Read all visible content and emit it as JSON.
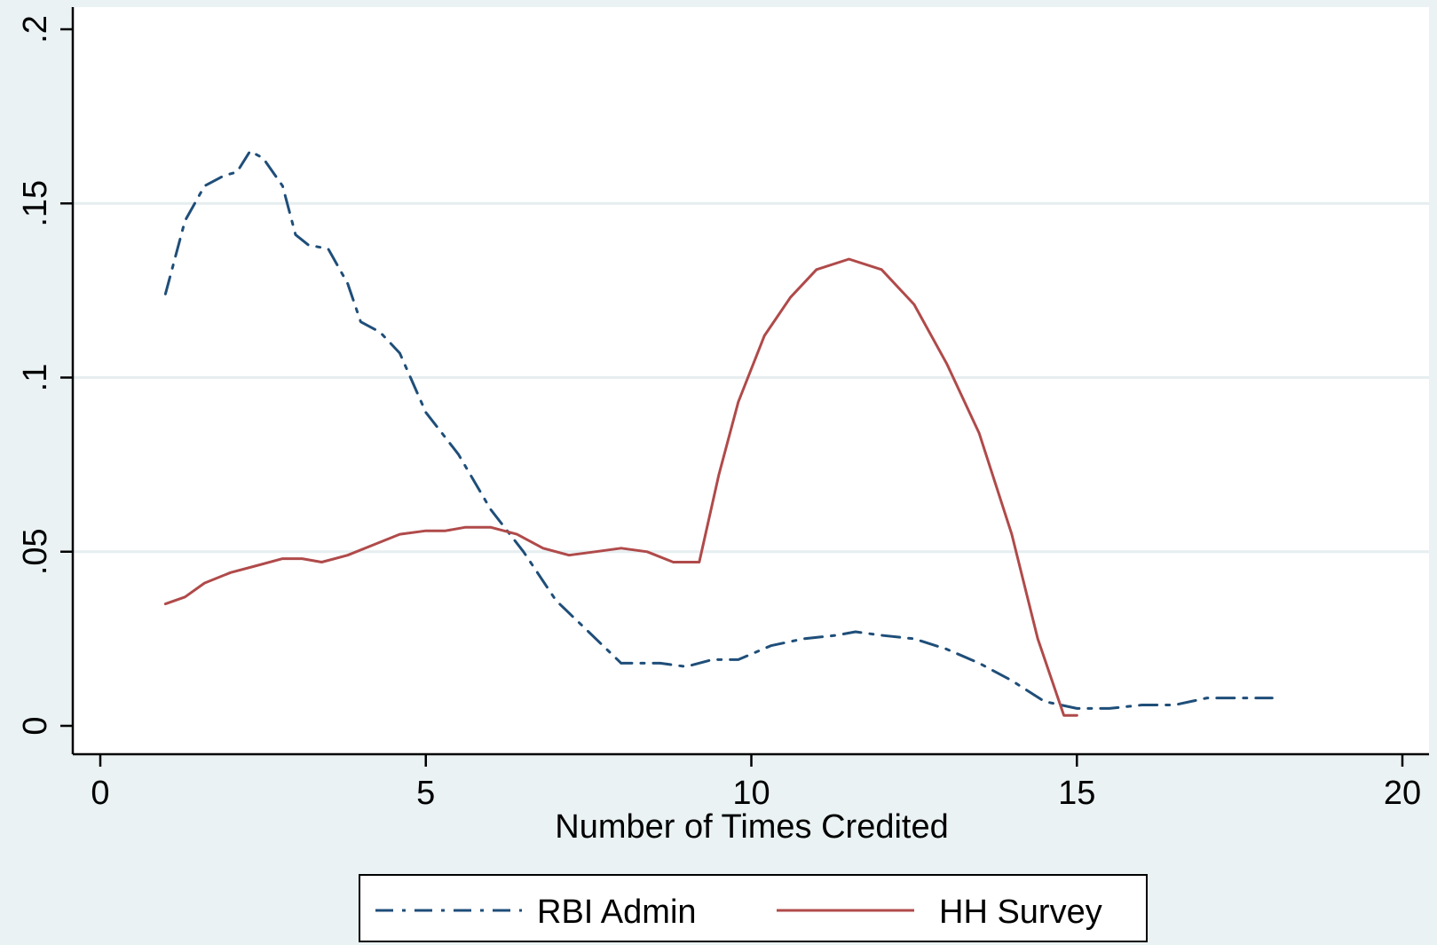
{
  "chart_data": {
    "type": "line",
    "title": "",
    "xlabel": "Number of Times Credited",
    "ylabel": "",
    "xlim": [
      0,
      20
    ],
    "ylim": [
      0,
      0.2
    ],
    "x_ticks": [
      0,
      5,
      10,
      15,
      20
    ],
    "x_tick_labels": [
      "0",
      "5",
      "10",
      "15",
      "20"
    ],
    "y_ticks": [
      0,
      0.05,
      0.1,
      0.15,
      0.2
    ],
    "y_tick_labels": [
      "0",
      ".05",
      ".1",
      ".15",
      ".2"
    ],
    "grid": "horizontal",
    "legend_position": "bottom",
    "series": [
      {
        "name": "RBI Admin",
        "color": "#1f4e79",
        "style": "dash-dot",
        "x": [
          1,
          1.3,
          1.6,
          1.9,
          2.1,
          2.3,
          2.5,
          2.8,
          3.0,
          3.2,
          3.5,
          3.8,
          4.0,
          4.3,
          4.6,
          5.0,
          5.5,
          6.0,
          6.5,
          7.0,
          7.5,
          8.0,
          8.3,
          8.6,
          9.0,
          9.4,
          9.8,
          10.3,
          10.8,
          11.3,
          11.6,
          12.0,
          12.5,
          13.0,
          13.5,
          14.0,
          14.5,
          15.0,
          15.5,
          16.0,
          16.5,
          17.0,
          17.5,
          18.0
        ],
        "y": [
          0.124,
          0.145,
          0.155,
          0.158,
          0.159,
          0.165,
          0.163,
          0.155,
          0.141,
          0.138,
          0.137,
          0.127,
          0.116,
          0.113,
          0.107,
          0.09,
          0.078,
          0.062,
          0.05,
          0.036,
          0.027,
          0.018,
          0.018,
          0.018,
          0.017,
          0.019,
          0.019,
          0.023,
          0.025,
          0.026,
          0.027,
          0.026,
          0.025,
          0.022,
          0.018,
          0.013,
          0.007,
          0.005,
          0.005,
          0.006,
          0.006,
          0.008,
          0.008,
          0.008
        ]
      },
      {
        "name": "HH Survey",
        "color": "#b04a4a",
        "style": "solid",
        "x": [
          1,
          1.3,
          1.6,
          2.0,
          2.4,
          2.8,
          3.1,
          3.4,
          3.8,
          4.2,
          4.6,
          5.0,
          5.3,
          5.6,
          6.0,
          6.4,
          6.8,
          7.2,
          7.6,
          8.0,
          8.4,
          8.8,
          9.2,
          9.5,
          9.8,
          10.2,
          10.6,
          11.0,
          11.5,
          12.0,
          12.5,
          13.0,
          13.5,
          14.0,
          14.4,
          14.8,
          15.0
        ],
        "y": [
          0.035,
          0.037,
          0.041,
          0.044,
          0.046,
          0.048,
          0.048,
          0.047,
          0.049,
          0.052,
          0.055,
          0.056,
          0.056,
          0.057,
          0.057,
          0.055,
          0.051,
          0.049,
          0.05,
          0.051,
          0.05,
          0.047,
          0.047,
          0.072,
          0.093,
          0.112,
          0.123,
          0.131,
          0.134,
          0.131,
          0.121,
          0.104,
          0.084,
          0.055,
          0.025,
          0.003,
          0.003
        ]
      }
    ]
  }
}
